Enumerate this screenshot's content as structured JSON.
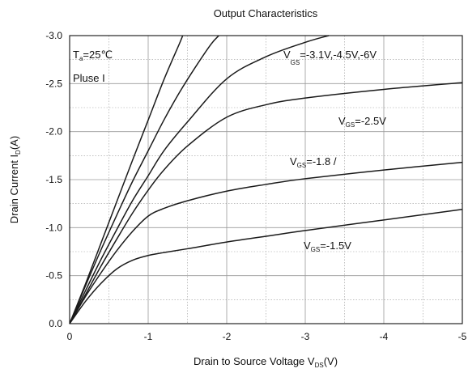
{
  "chart_data": {
    "type": "line",
    "title": "Output Characteristics",
    "xlabel": "Drain to Source Voltage V<sub>DS</sub>(V)",
    "xlabel_parts": [
      "Drain to Source Voltage V",
      "DS",
      "(V)"
    ],
    "ylabel_parts": [
      "Drain Current I",
      "D",
      "(A)"
    ],
    "xlim": [
      0,
      -5
    ],
    "ylim": [
      0,
      -3.0
    ],
    "x_ticks": [
      "0",
      "-1",
      "-2",
      "-3",
      "-4",
      "-5"
    ],
    "y_ticks": [
      "0.0",
      "-0.5",
      "-1.0",
      "-1.5",
      "-2.0",
      "-2.5",
      "-3.0"
    ],
    "grid": "major solid, minor dotted",
    "annotations": {
      "ta": [
        "T",
        "a",
        "=25℃"
      ],
      "pulse": "Pluse I",
      "vgs_high": [
        "V",
        "GS",
        "=-3.1V,-4.5V,-6V"
      ],
      "vgs_25": [
        "V",
        "GS",
        "=-2.5V"
      ],
      "vgs_18": [
        "V",
        "GS",
        "=-1.8 /"
      ],
      "vgs_15": [
        "V",
        "GS",
        "=-1.5V"
      ]
    },
    "series": [
      {
        "x": [
          0,
          -0.2,
          -0.4,
          -0.6,
          -0.8,
          -1.0,
          -1.2,
          -1.4,
          -1.44
        ],
        "y": [
          0,
          -0.41,
          -0.84,
          -1.27,
          -1.7,
          -2.12,
          -2.54,
          -2.92,
          -3.0
        ]
      },
      {
        "x": [
          0,
          -0.2,
          -0.4,
          -0.6,
          -0.8,
          -1.0,
          -1.2,
          -1.4,
          -1.6,
          -1.8,
          -1.9
        ],
        "y": [
          0,
          -0.39,
          -0.77,
          -1.13,
          -1.48,
          -1.8,
          -2.12,
          -2.41,
          -2.67,
          -2.91,
          -3.0
        ]
      },
      {
        "x": [
          0,
          -0.2,
          -0.4,
          -0.6,
          -0.8,
          -1.0,
          -1.2,
          -1.5,
          -2.0,
          -2.5,
          -3.0,
          -3.3
        ],
        "y": [
          0,
          -0.34,
          -0.67,
          -0.98,
          -1.28,
          -1.54,
          -1.8,
          -2.1,
          -2.55,
          -2.78,
          -2.93,
          -3.0
        ]
      },
      {
        "x": [
          0,
          -0.2,
          -0.4,
          -0.6,
          -0.8,
          -1.0,
          -1.2,
          -1.5,
          -2.0,
          -2.5,
          -3.0,
          -4.0,
          -5.0
        ],
        "y": [
          0,
          -0.3,
          -0.6,
          -0.88,
          -1.15,
          -1.39,
          -1.6,
          -1.85,
          -2.15,
          -2.28,
          -2.35,
          -2.44,
          -2.51
        ]
      },
      {
        "x": [
          0,
          -0.2,
          -0.4,
          -0.6,
          -0.8,
          -1.0,
          -1.2,
          -1.5,
          -2.0,
          -2.5,
          -3.0,
          -4.0,
          -5.0
        ],
        "y": [
          0,
          -0.28,
          -0.53,
          -0.76,
          -0.96,
          -1.12,
          -1.2,
          -1.28,
          -1.38,
          -1.45,
          -1.51,
          -1.6,
          -1.68
        ]
      },
      {
        "x": [
          0,
          -0.2,
          -0.4,
          -0.6,
          -0.8,
          -1.0,
          -1.2,
          -1.5,
          -2.0,
          -2.5,
          -3.0,
          -4.0,
          -5.0
        ],
        "y": [
          0,
          -0.23,
          -0.42,
          -0.57,
          -0.66,
          -0.71,
          -0.74,
          -0.78,
          -0.85,
          -0.91,
          -0.97,
          -1.08,
          -1.19
        ]
      }
    ]
  }
}
